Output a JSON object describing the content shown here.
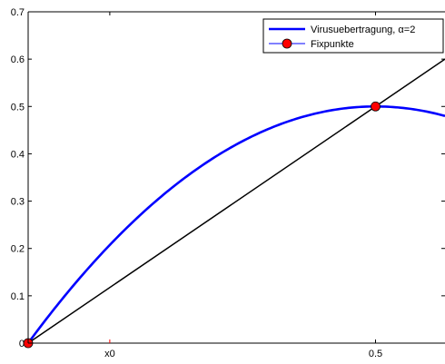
{
  "chart_data": {
    "type": "line",
    "xlim": [
      0,
      0.6
    ],
    "ylim": [
      0,
      0.7
    ],
    "x_ticks": [
      {
        "value": 0.1175,
        "label": "x0"
      },
      {
        "value": 0.5,
        "label": "0.5"
      }
    ],
    "y_ticks": [
      {
        "value": 0,
        "label": "0"
      },
      {
        "value": 0.1,
        "label": "0.1"
      },
      {
        "value": 0.2,
        "label": "0.2"
      },
      {
        "value": 0.3,
        "label": "0.3"
      },
      {
        "value": 0.4,
        "label": "0.4"
      },
      {
        "value": 0.5,
        "label": "0.5"
      },
      {
        "value": 0.6,
        "label": "0.6"
      },
      {
        "value": 0.7,
        "label": "0.7"
      }
    ],
    "grid": false,
    "legend_position": "top-right",
    "series": [
      {
        "name": "Virusuebertragung, α=2",
        "color": "#0000ff",
        "function": "f(x) = 2x(1-x)",
        "x": [
          0,
          0.05,
          0.1,
          0.15,
          0.2,
          0.25,
          0.3,
          0.35,
          0.4,
          0.45,
          0.5,
          0.55,
          0.6
        ],
        "y": [
          0,
          0.095,
          0.18,
          0.255,
          0.32,
          0.375,
          0.42,
          0.455,
          0.48,
          0.495,
          0.5,
          0.495,
          0.48
        ]
      },
      {
        "color": "#000000",
        "function": "y = x",
        "x": [
          0,
          0.6
        ],
        "y": [
          0,
          0.6
        ]
      },
      {
        "name": "Fixpunkte",
        "color": "#ff0000",
        "marker": "circle",
        "x": [
          0,
          0.5
        ],
        "y": [
          0,
          0.5
        ]
      }
    ]
  }
}
